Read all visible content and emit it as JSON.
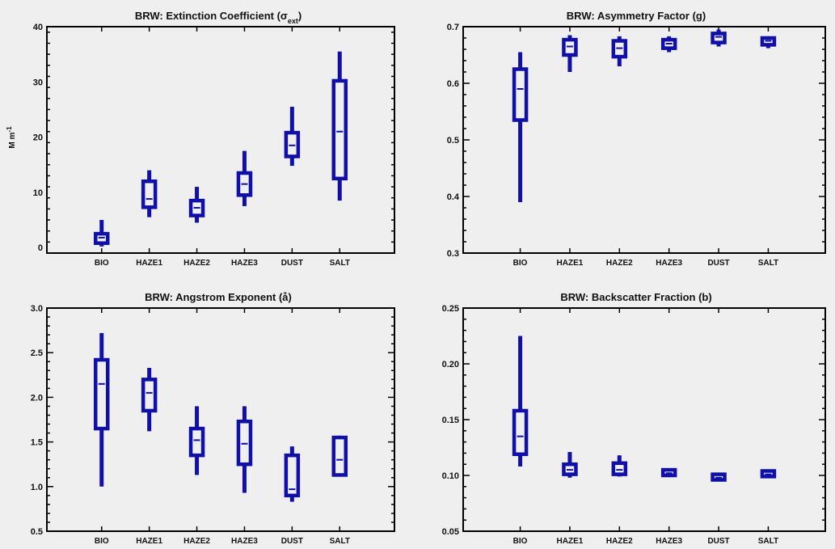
{
  "colors": {
    "box": "#1010a8",
    "axis": "#000000",
    "background": "#efefef"
  },
  "chart_data": [
    {
      "type": "box",
      "title": "BRW: Extinction Coefficient (σ",
      "title_sub": "ext",
      "title_end": ")",
      "ylabel": "M m",
      "ylabel_sup": "-1",
      "ylim": [
        -1,
        40
      ],
      "yticks": [
        0,
        10,
        20,
        30,
        40
      ],
      "ytick_labels": [
        "0",
        "10",
        "20",
        "30",
        "40"
      ],
      "categories": [
        "BIO",
        "HAZE1",
        "HAZE2",
        "HAZE3",
        "DUST",
        "SALT"
      ],
      "boxes": [
        {
          "min": 0.2,
          "q1": 0.8,
          "median": 1.8,
          "q3": 2.5,
          "max": 5.0
        },
        {
          "min": 5.5,
          "q1": 7.3,
          "median": 8.8,
          "q3": 12.0,
          "max": 14.0
        },
        {
          "min": 4.5,
          "q1": 5.8,
          "median": 7.2,
          "q3": 8.5,
          "max": 11.0
        },
        {
          "min": 7.5,
          "q1": 9.5,
          "median": 11.5,
          "q3": 13.5,
          "max": 17.5
        },
        {
          "min": 14.8,
          "q1": 16.5,
          "median": 18.5,
          "q3": 20.8,
          "max": 25.5
        },
        {
          "min": 8.5,
          "q1": 12.5,
          "median": 21.0,
          "q3": 30.2,
          "max": 35.5
        }
      ]
    },
    {
      "type": "box",
      "title": "BRW: Asymmetry Factor (g)",
      "ylabel": "",
      "ylim": [
        0.3,
        0.7
      ],
      "yticks": [
        0.3,
        0.4,
        0.5,
        0.6,
        0.7
      ],
      "ytick_labels": [
        "0.3",
        "0.4",
        "0.5",
        "0.6",
        "0.7"
      ],
      "categories": [
        "BIO",
        "HAZE1",
        "HAZE2",
        "HAZE3",
        "DUST",
        "SALT"
      ],
      "boxes": [
        {
          "min": 0.39,
          "q1": 0.535,
          "median": 0.59,
          "q3": 0.625,
          "max": 0.655
        },
        {
          "min": 0.62,
          "q1": 0.65,
          "median": 0.665,
          "q3": 0.677,
          "max": 0.685
        },
        {
          "min": 0.63,
          "q1": 0.647,
          "median": 0.662,
          "q3": 0.675,
          "max": 0.683
        },
        {
          "min": 0.655,
          "q1": 0.662,
          "median": 0.67,
          "q3": 0.677,
          "max": 0.683
        },
        {
          "min": 0.665,
          "q1": 0.672,
          "median": 0.682,
          "q3": 0.688,
          "max": 0.695
        },
        {
          "min": 0.662,
          "q1": 0.668,
          "median": 0.675,
          "q3": 0.68,
          "max": 0.683
        }
      ]
    },
    {
      "type": "box",
      "title": "BRW: Angstrom Exponent (å)",
      "ylabel": "",
      "ylim": [
        0.5,
        3.0
      ],
      "yticks": [
        0.5,
        1.0,
        1.5,
        2.0,
        2.5,
        3.0
      ],
      "ytick_labels": [
        "0.5",
        "1.0",
        "1.5",
        "2.0",
        "2.5",
        "3.0"
      ],
      "categories": [
        "BIO",
        "HAZE1",
        "HAZE2",
        "HAZE3",
        "DUST",
        "SALT"
      ],
      "boxes": [
        {
          "min": 1.0,
          "q1": 1.65,
          "median": 2.15,
          "q3": 2.42,
          "max": 2.72
        },
        {
          "min": 1.62,
          "q1": 1.85,
          "median": 2.05,
          "q3": 2.2,
          "max": 2.33
        },
        {
          "min": 1.13,
          "q1": 1.35,
          "median": 1.52,
          "q3": 1.65,
          "max": 1.9
        },
        {
          "min": 0.93,
          "q1": 1.25,
          "median": 1.48,
          "q3": 1.73,
          "max": 1.9
        },
        {
          "min": 0.83,
          "q1": 0.9,
          "median": 0.97,
          "q3": 1.35,
          "max": 1.45
        },
        {
          "min": 1.12,
          "q1": 1.13,
          "median": 1.3,
          "q3": 1.55,
          "max": 1.57
        }
      ]
    },
    {
      "type": "box",
      "title": "BRW: Backscatter Fraction (b)",
      "ylabel": "",
      "ylim": [
        0.05,
        0.25
      ],
      "yticks": [
        0.05,
        0.1,
        0.15,
        0.2,
        0.25
      ],
      "ytick_labels": [
        "0.05",
        "0.10",
        "0.15",
        "0.20",
        "0.25"
      ],
      "categories": [
        "BIO",
        "HAZE1",
        "HAZE2",
        "HAZE3",
        "DUST",
        "SALT"
      ],
      "boxes": [
        {
          "min": 0.108,
          "q1": 0.119,
          "median": 0.135,
          "q3": 0.158,
          "max": 0.225
        },
        {
          "min": 0.098,
          "q1": 0.101,
          "median": 0.105,
          "q3": 0.11,
          "max": 0.121
        },
        {
          "min": 0.099,
          "q1": 0.101,
          "median": 0.105,
          "q3": 0.111,
          "max": 0.118
        },
        {
          "min": 0.099,
          "q1": 0.1,
          "median": 0.102,
          "q3": 0.105,
          "max": 0.106
        },
        {
          "min": 0.095,
          "q1": 0.096,
          "median": 0.098,
          "q3": 0.101,
          "max": 0.102
        },
        {
          "min": 0.098,
          "q1": 0.099,
          "median": 0.101,
          "q3": 0.104,
          "max": 0.105
        }
      ]
    }
  ]
}
